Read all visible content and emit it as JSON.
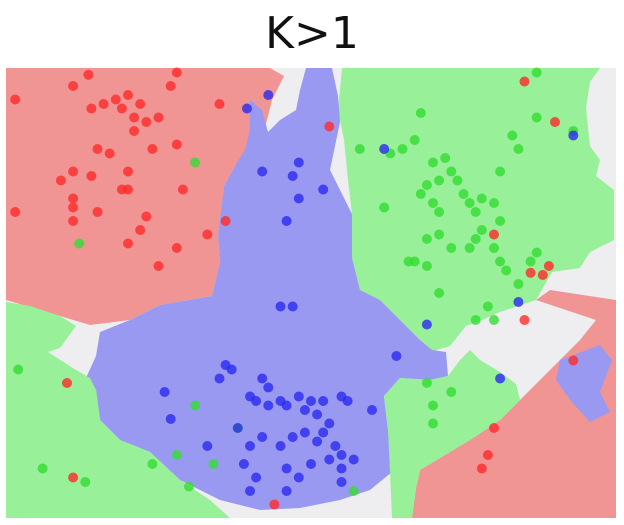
{
  "title": "K>1",
  "colors": {
    "red_region": "#F19494",
    "green_region": "#98F098",
    "blue_region": "#9999F2",
    "unassigned_region": "#EEEEF0",
    "red_point": "#FF2A2A",
    "green_point": "#33DD33",
    "blue_point": "#2A2AF0"
  },
  "chart_data": {
    "type": "scatter",
    "description_classes": [
      "red",
      "green",
      "blue"
    ],
    "xlim": [
      0,
      100
    ],
    "ylim": [
      0,
      100
    ],
    "series": [
      {
        "class": "red",
        "points": [
          [
            1.5,
            93
          ],
          [
            13.5,
            98.5
          ],
          [
            11,
            96
          ],
          [
            14,
            91
          ],
          [
            16,
            92
          ],
          [
            18,
            93
          ],
          [
            19,
            91
          ],
          [
            20,
            94
          ],
          [
            21,
            89
          ],
          [
            23,
            88
          ],
          [
            22,
            92
          ],
          [
            25,
            89
          ],
          [
            27,
            96
          ],
          [
            28,
            99
          ],
          [
            35,
            92
          ],
          [
            21,
            86
          ],
          [
            17,
            81
          ],
          [
            15,
            82
          ],
          [
            24,
            82
          ],
          [
            28,
            83
          ],
          [
            20,
            77
          ],
          [
            11,
            77
          ],
          [
            14,
            76
          ],
          [
            9,
            75
          ],
          [
            11,
            71
          ],
          [
            19,
            73
          ],
          [
            11,
            69
          ],
          [
            15,
            68
          ],
          [
            11,
            66
          ],
          [
            20,
            73
          ],
          [
            22,
            64
          ],
          [
            20,
            61
          ],
          [
            23,
            67
          ],
          [
            28,
            60
          ],
          [
            33,
            63
          ],
          [
            29,
            73
          ],
          [
            36,
            66
          ],
          [
            1.5,
            68
          ],
          [
            25,
            56
          ],
          [
            53,
            87
          ],
          [
            85,
            97
          ],
          [
            90,
            88
          ],
          [
            80,
            63
          ],
          [
            89,
            56
          ],
          [
            85,
            44
          ],
          [
            88,
            54
          ],
          [
            86,
            54.5
          ],
          [
            93,
            35
          ],
          [
            80,
            20
          ],
          [
            79,
            14
          ],
          [
            78,
            11
          ],
          [
            44,
            3
          ],
          [
            10,
            30
          ],
          [
            11,
            9
          ]
        ]
      },
      {
        "class": "green",
        "points": [
          [
            31,
            79
          ],
          [
            12,
            61
          ],
          [
            58,
            82
          ],
          [
            63,
            81
          ],
          [
            65,
            82
          ],
          [
            67,
            84
          ],
          [
            68,
            90
          ],
          [
            70,
            79
          ],
          [
            72,
            80
          ],
          [
            73,
            77
          ],
          [
            74,
            75
          ],
          [
            71,
            75
          ],
          [
            69,
            74
          ],
          [
            68,
            72
          ],
          [
            70,
            70
          ],
          [
            71,
            68
          ],
          [
            75,
            72
          ],
          [
            76,
            70
          ],
          [
            77,
            68
          ],
          [
            78,
            71
          ],
          [
            80,
            70
          ],
          [
            81,
            66
          ],
          [
            78,
            64
          ],
          [
            77,
            62
          ],
          [
            76,
            60
          ],
          [
            73,
            60
          ],
          [
            71,
            63
          ],
          [
            69,
            62
          ],
          [
            67,
            57
          ],
          [
            69,
            56
          ],
          [
            66,
            57
          ],
          [
            81,
            77
          ],
          [
            83,
            85
          ],
          [
            84,
            82
          ],
          [
            87,
            99
          ],
          [
            87,
            89
          ],
          [
            93,
            86
          ],
          [
            80,
            60
          ],
          [
            81,
            57
          ],
          [
            84,
            52
          ],
          [
            86,
            57
          ],
          [
            87,
            59
          ],
          [
            82,
            55
          ],
          [
            79,
            47
          ],
          [
            80,
            44
          ],
          [
            77,
            44
          ],
          [
            71,
            50
          ],
          [
            69,
            30
          ],
          [
            70,
            25
          ],
          [
            73,
            28
          ],
          [
            70,
            21
          ],
          [
            62,
            69
          ],
          [
            2,
            33
          ],
          [
            31,
            25
          ],
          [
            6,
            11
          ],
          [
            13,
            8
          ],
          [
            28,
            14
          ],
          [
            24,
            12
          ],
          [
            30,
            7
          ],
          [
            34,
            12
          ],
          [
            38,
            20
          ],
          [
            57,
            6
          ]
        ]
      },
      {
        "class": "blue",
        "points": [
          [
            39.5,
            91
          ],
          [
            43,
            94
          ],
          [
            42,
            77
          ],
          [
            48,
            79
          ],
          [
            47,
            76
          ],
          [
            52,
            73
          ],
          [
            48,
            71
          ],
          [
            46,
            66
          ],
          [
            45,
            47
          ],
          [
            47,
            47
          ],
          [
            35,
            31
          ],
          [
            37,
            33
          ],
          [
            36,
            34
          ],
          [
            42,
            31
          ],
          [
            43,
            29
          ],
          [
            40,
            27
          ],
          [
            41,
            26
          ],
          [
            43,
            25
          ],
          [
            45,
            26
          ],
          [
            46,
            25
          ],
          [
            48,
            27
          ],
          [
            50,
            26
          ],
          [
            49,
            24
          ],
          [
            51,
            23
          ],
          [
            52,
            26
          ],
          [
            55,
            27
          ],
          [
            56,
            26
          ],
          [
            53,
            21
          ],
          [
            52,
            19
          ],
          [
            49,
            19
          ],
          [
            47,
            18
          ],
          [
            45,
            16
          ],
          [
            42,
            18
          ],
          [
            40,
            16
          ],
          [
            38,
            20
          ],
          [
            39,
            12
          ],
          [
            41,
            9
          ],
          [
            46,
            11
          ],
          [
            51,
            17
          ],
          [
            54,
            16
          ],
          [
            55,
            14
          ],
          [
            53,
            13
          ],
          [
            50,
            12
          ],
          [
            48,
            9
          ],
          [
            55,
            11
          ],
          [
            57,
            13
          ],
          [
            55,
            8
          ],
          [
            60,
            24
          ],
          [
            64,
            36
          ],
          [
            69,
            43
          ],
          [
            81,
            31
          ],
          [
            84,
            48
          ],
          [
            62,
            82
          ],
          [
            93,
            85
          ],
          [
            26,
            28
          ],
          [
            27,
            22
          ],
          [
            46,
            6
          ],
          [
            33,
            16
          ],
          [
            40,
            6
          ]
        ]
      }
    ],
    "regions": [
      {
        "class": "red",
        "shape": "top-left"
      },
      {
        "class": "green",
        "shape": "top-right"
      },
      {
        "class": "blue",
        "shape": "center-cross"
      },
      {
        "class": "green",
        "shape": "bottom-left"
      },
      {
        "class": "red",
        "shape": "bottom-right"
      },
      {
        "class": "unassigned",
        "shape": "gaps"
      }
    ]
  }
}
